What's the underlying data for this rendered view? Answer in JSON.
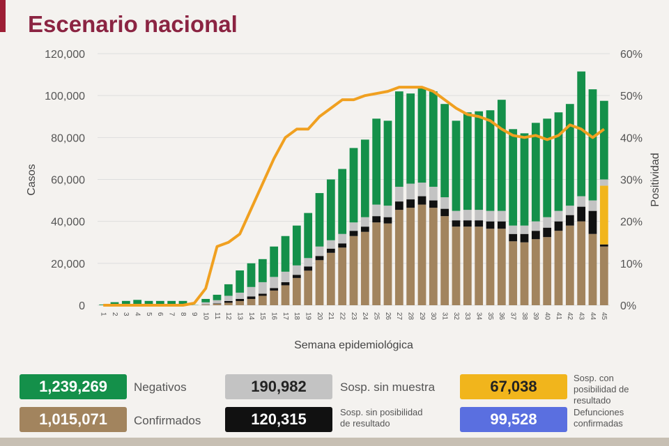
{
  "title": "Escenario nacional",
  "colors": {
    "confirmados": "#a2845e",
    "sin_posibilidad": "#111111",
    "sin_muestra": "#c3c3c3",
    "con_posibilidad": "#f1b51c",
    "negativos": "#14904a",
    "positividad": "#f0a020",
    "defunciones": "#5a6fe0",
    "title": "#8b2442"
  },
  "chart_data": {
    "type": "bar",
    "stacked": true,
    "xlabel": "Semana epidemiológica",
    "ylabel": "Casos",
    "y2label": "Positividad",
    "ylim": [
      0,
      120000
    ],
    "y2lim": [
      0,
      60
    ],
    "yticks": [
      "0",
      "20,000",
      "40,000",
      "60,000",
      "80,000",
      "100,000",
      "120,000"
    ],
    "y2ticks": [
      "0%",
      "10%",
      "20%",
      "30%",
      "40%",
      "50%",
      "60%"
    ],
    "grid": true,
    "categories": [
      1,
      2,
      3,
      4,
      5,
      6,
      7,
      8,
      9,
      10,
      11,
      12,
      13,
      14,
      15,
      16,
      17,
      18,
      19,
      20,
      21,
      22,
      23,
      24,
      25,
      26,
      27,
      28,
      29,
      30,
      31,
      32,
      33,
      34,
      35,
      36,
      37,
      38,
      39,
      40,
      41,
      42,
      43,
      44,
      45
    ],
    "series": [
      {
        "key": "confirmados",
        "values": [
          50,
          50,
          50,
          50,
          50,
          50,
          50,
          50,
          0,
          300,
          700,
          1200,
          2000,
          3000,
          4500,
          7000,
          9500,
          13000,
          16500,
          21500,
          25000,
          27500,
          33000,
          35000,
          39500,
          39000,
          45500,
          46500,
          48000,
          46500,
          42500,
          37500,
          37500,
          37500,
          36500,
          36500,
          30500,
          30000,
          31500,
          32500,
          35500,
          38000,
          40000,
          34000,
          28000
        ]
      },
      {
        "key": "sin_posibilidad",
        "values": [
          0,
          0,
          0,
          0,
          0,
          0,
          0,
          0,
          0,
          100,
          200,
          800,
          1000,
          1200,
          1000,
          1200,
          1500,
          1500,
          2000,
          2000,
          2000,
          2000,
          2500,
          2500,
          3000,
          3000,
          4000,
          4000,
          4000,
          3500,
          3500,
          3000,
          3000,
          3000,
          3500,
          3500,
          3500,
          4000,
          4000,
          4500,
          4500,
          5000,
          7000,
          11000,
          1000
        ]
      },
      {
        "key": "con_posibilidad",
        "values": [
          0,
          0,
          0,
          0,
          0,
          0,
          0,
          0,
          0,
          0,
          0,
          0,
          0,
          0,
          0,
          0,
          0,
          0,
          0,
          0,
          0,
          0,
          0,
          0,
          0,
          0,
          0,
          0,
          0,
          0,
          0,
          0,
          0,
          0,
          0,
          0,
          0,
          0,
          0,
          0,
          0,
          0,
          0,
          0,
          28000
        ]
      },
      {
        "key": "sin_muestra",
        "values": [
          0,
          100,
          100,
          100,
          100,
          100,
          100,
          100,
          0,
          1000,
          1500,
          2500,
          3000,
          4500,
          5500,
          5300,
          5000,
          4500,
          4000,
          4500,
          4000,
          4500,
          4000,
          4500,
          5500,
          5500,
          7000,
          7500,
          6500,
          6500,
          5500,
          4500,
          5000,
          5000,
          5000,
          5000,
          4000,
          4000,
          4500,
          5000,
          5000,
          4500,
          5000,
          5000,
          3000
        ]
      },
      {
        "key": "negativos",
        "values": [
          300,
          1300,
          1900,
          2400,
          1900,
          1900,
          1900,
          1900,
          100,
          1600,
          2600,
          5500,
          10600,
          11300,
          11000,
          14500,
          17000,
          19000,
          21500,
          25500,
          29000,
          31000,
          35500,
          37000,
          41000,
          40500,
          45500,
          43000,
          45500,
          45500,
          44500,
          43000,
          46500,
          47000,
          48000,
          53000,
          46000,
          44000,
          47000,
          47000,
          47000,
          48500,
          59500,
          53000,
          37500
        ]
      }
    ],
    "line": {
      "key": "positividad",
      "values": [
        0,
        0,
        0,
        0,
        0,
        0,
        0,
        0,
        0.5,
        4,
        14,
        15,
        17,
        23,
        29,
        35,
        40,
        42,
        42,
        45,
        47,
        49,
        49,
        50,
        50.5,
        51,
        52,
        52,
        52,
        51,
        49,
        47,
        45.5,
        45,
        44,
        42,
        40.5,
        40,
        40.5,
        39.5,
        40.5,
        43,
        42,
        40,
        42
      ]
    }
  },
  "summary": [
    {
      "key": "negativos",
      "value": "1,239,269",
      "label": "Negativos"
    },
    {
      "key": "sin_muestra",
      "value": "190,982",
      "label": "Sosp. sin muestra"
    },
    {
      "key": "con_posibilidad",
      "value": "67,038",
      "label": "Sosp. con posibilidad de resultado"
    },
    {
      "key": "confirmados",
      "value": "1,015,071",
      "label": "Confirmados"
    },
    {
      "key": "sin_posibilidad",
      "value": "120,315",
      "label": "Sosp. sin posibilidad de resultado"
    },
    {
      "key": "defunciones",
      "value": "99,528",
      "label": "Defunciones confirmadas"
    }
  ]
}
